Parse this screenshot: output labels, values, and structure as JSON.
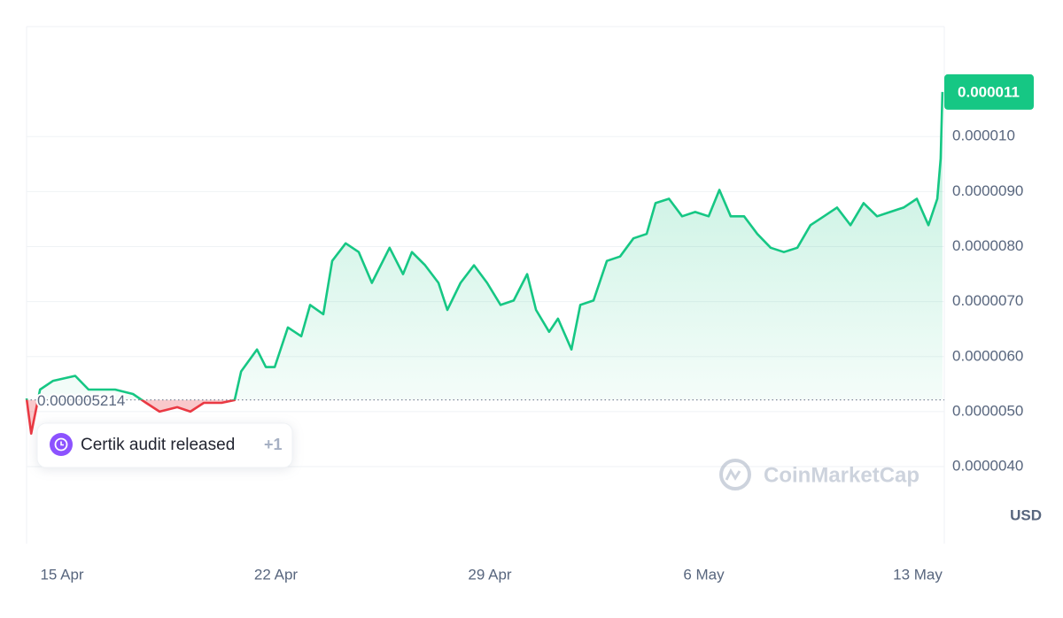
{
  "chart_data": {
    "type": "line",
    "baseline": {
      "value": 5.214e-06
    },
    "current_price": 1.1e-05,
    "annotation": {
      "text": "Certik audit released",
      "more": "+1"
    },
    "watermark": "CoinMarketCap",
    "y_unit": "USD",
    "up_color": "#16c784",
    "down_color": "#ea3943",
    "xlim": [
      -1.16,
      28.87
    ],
    "xticks": [
      {
        "value": 0,
        "label": "15 Apr"
      },
      {
        "value": 7,
        "label": "22 Apr"
      },
      {
        "value": 14,
        "label": "29 Apr"
      },
      {
        "value": 21,
        "label": "6 May"
      },
      {
        "value": 28,
        "label": "13 May"
      }
    ],
    "ylim": [
      2.6e-06,
      1.2e-05
    ],
    "yticks": [
      {
        "value": 4e-06,
        "label": "0.0000040"
      },
      {
        "value": 5e-06,
        "label": "0.0000050"
      },
      {
        "value": 6e-06,
        "label": "0.0000060"
      },
      {
        "value": 7e-06,
        "label": "0.0000070"
      },
      {
        "value": 8e-06,
        "label": "0.0000080"
      },
      {
        "value": 9e-06,
        "label": "0.0000090"
      },
      {
        "value": 1e-05,
        "label": "0.000010"
      }
    ],
    "grid": true,
    "x": [
      -1.16,
      -1.01,
      -0.72,
      -0.29,
      0.43,
      0.87,
      1.74,
      2.32,
      2.75,
      3.19,
      3.77,
      4.2,
      4.64,
      5.22,
      5.65,
      5.86,
      6.38,
      6.67,
      6.96,
      7.39,
      7.83,
      8.12,
      8.55,
      8.84,
      9.28,
      9.71,
      10.14,
      10.72,
      11.16,
      11.45,
      11.88,
      12.32,
      12.61,
      13.04,
      13.48,
      13.91,
      14.35,
      14.78,
      15.22,
      15.51,
      15.94,
      16.23,
      16.67,
      16.96,
      17.39,
      17.83,
      18.26,
      18.7,
      19.13,
      19.42,
      19.86,
      20.29,
      20.72,
      21.16,
      21.51,
      21.88,
      22.32,
      22.75,
      23.19,
      23.62,
      24.06,
      24.49,
      24.93,
      25.36,
      25.8,
      26.23,
      26.67,
      27.1,
      27.54,
      27.97,
      28.35,
      28.64,
      28.75,
      28.81
    ],
    "values": [
      5.24e-06,
      4.6e-06,
      5.4e-06,
      5.56e-06,
      5.65e-06,
      5.4e-06,
      5.4e-06,
      5.32e-06,
      5.16e-06,
      5e-06,
      5.08e-06,
      5e-06,
      5.16e-06,
      5.16e-06,
      5.21e-06,
      5.73e-06,
      6.13e-06,
      5.81e-06,
      5.81e-06,
      6.53e-06,
      6.37e-06,
      6.94e-06,
      6.77e-06,
      7.74e-06,
      8.06e-06,
      7.9e-06,
      7.34e-06,
      7.98e-06,
      7.5e-06,
      7.9e-06,
      7.66e-06,
      7.34e-06,
      6.85e-06,
      7.34e-06,
      7.66e-06,
      7.34e-06,
      6.94e-06,
      7.02e-06,
      7.5e-06,
      6.85e-06,
      6.45e-06,
      6.69e-06,
      6.13e-06,
      6.94e-06,
      7.02e-06,
      7.74e-06,
      7.82e-06,
      8.15e-06,
      8.23e-06,
      8.79e-06,
      8.87e-06,
      8.55e-06,
      8.63e-06,
      8.55e-06,
      9.03e-06,
      8.55e-06,
      8.55e-06,
      8.23e-06,
      7.98e-06,
      7.9e-06,
      7.98e-06,
      8.39e-06,
      8.55e-06,
      8.71e-06,
      8.39e-06,
      8.79e-06,
      8.55e-06,
      8.63e-06,
      8.71e-06,
      8.87e-06,
      8.39e-06,
      8.87e-06,
      9.6e-06,
      1.081e-05
    ]
  }
}
